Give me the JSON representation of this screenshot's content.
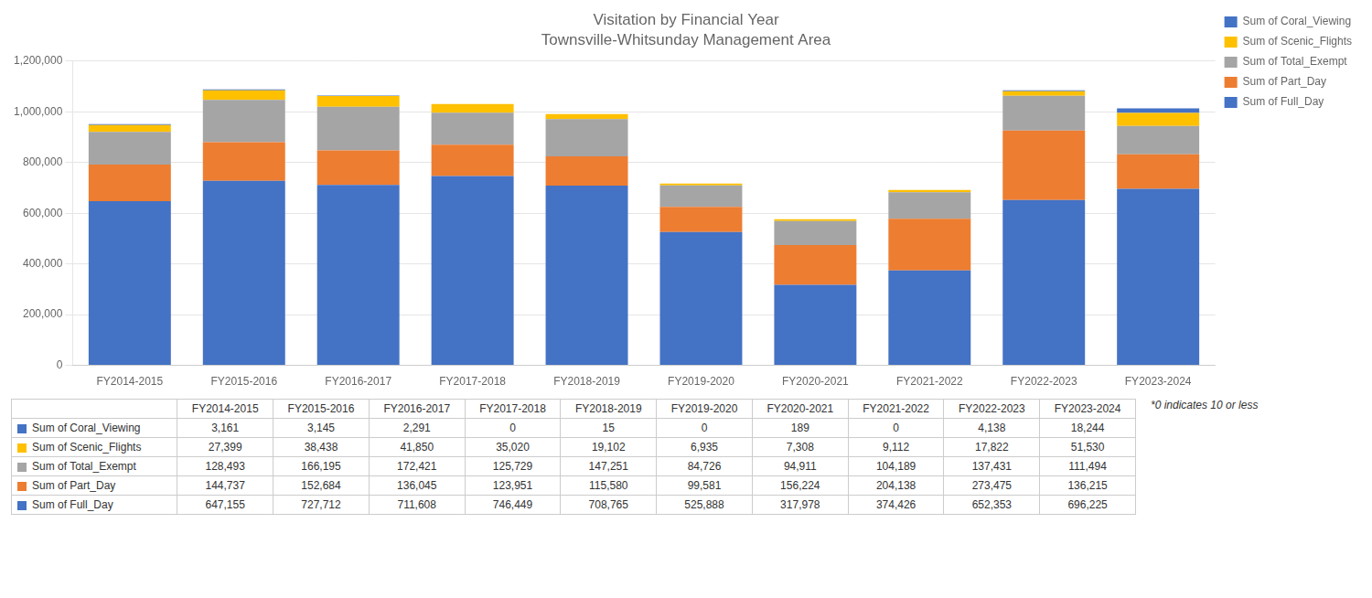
{
  "chart_data": {
    "type": "bar",
    "title": "Visitation by Financial Year",
    "subtitle": "Townsville-Whitsunday Management Area",
    "categories": [
      "FY2014-2015",
      "FY2015-2016",
      "FY2016-2017",
      "FY2017-2018",
      "FY2018-2019",
      "FY2019-2020",
      "FY2020-2021",
      "FY2021-2022",
      "FY2022-2023",
      "FY2023-2024"
    ],
    "series": [
      {
        "name": "Sum of Full_Day",
        "color": "#4472C4",
        "values": [
          647155,
          727712,
          711608,
          746449,
          708765,
          525888,
          317978,
          374426,
          652353,
          696225
        ]
      },
      {
        "name": "Sum of Part_Day",
        "color": "#ED7D31",
        "values": [
          144737,
          152684,
          136045,
          123951,
          115580,
          99581,
          156224,
          204138,
          273475,
          136215
        ]
      },
      {
        "name": "Sum of Total_Exempt",
        "color": "#A5A5A5",
        "values": [
          128493,
          166195,
          172421,
          125729,
          147251,
          84726,
          94911,
          104189,
          137431,
          111494
        ]
      },
      {
        "name": "Sum of Scenic_Flights",
        "color": "#FFC000",
        "values": [
          27399,
          38438,
          41850,
          35020,
          19102,
          6935,
          7308,
          9112,
          17822,
          51530
        ]
      },
      {
        "name": "Sum of Coral_Viewing",
        "color": "#4472C4",
        "values": [
          3161,
          3145,
          2291,
          0,
          15,
          0,
          189,
          0,
          4138,
          18244
        ]
      }
    ],
    "stacked": true,
    "ylim": [
      0,
      1200000
    ],
    "yticks": [
      0,
      {
        "value": 200000,
        "label": "200,000"
      },
      {
        "value": 400000,
        "label": "400,000"
      },
      {
        "value": 600000,
        "label": "600,000"
      },
      {
        "value": 800000,
        "label": "800,000"
      },
      {
        "value": 1000000,
        "label": "1,000,000"
      },
      {
        "value": 1200000,
        "label": "1,200,000"
      }
    ],
    "grid": true,
    "legend": "right",
    "annotation": "*0 indicates 10 or less",
    "table": {
      "rows": [
        {
          "name": "Sum of Coral_Viewing",
          "color": "#4472C4",
          "values": [
            3161,
            3145,
            2291,
            0,
            15,
            0,
            189,
            0,
            4138,
            18244
          ],
          "value_labels": [
            "3,161",
            "3,145",
            "2,291",
            "0",
            "15",
            "0",
            "189",
            "0",
            "4,138",
            "18,244"
          ]
        },
        {
          "name": "Sum of Scenic_Flights",
          "color": "#FFC000",
          "values": [
            27399,
            38438,
            41850,
            35020,
            19102,
            6935,
            7308,
            9112,
            17822,
            51530
          ],
          "value_labels": [
            "27,399",
            "38,438",
            "41,850",
            "35,020",
            "19,102",
            "6,935",
            "7,308",
            "9,112",
            "17,822",
            "51,530"
          ]
        },
        {
          "name": "Sum of Total_Exempt",
          "color": "#A5A5A5",
          "values": [
            128493,
            166195,
            172421,
            125729,
            147251,
            84726,
            94911,
            104189,
            137431,
            111494
          ],
          "value_labels": [
            "128,493",
            "166,195",
            "172,421",
            "125,729",
            "147,251",
            "84,726",
            "94,911",
            "104,189",
            "137,431",
            "111,494"
          ]
        },
        {
          "name": "Sum of Part_Day",
          "color": "#ED7D31",
          "values": [
            144737,
            152684,
            136045,
            123951,
            115580,
            99581,
            156224,
            204138,
            273475,
            136215
          ],
          "value_labels": [
            "144,737",
            "152,684",
            "136,045",
            "123,951",
            "115,580",
            "99,581",
            "156,224",
            "204,138",
            "273,475",
            "136,215"
          ]
        },
        {
          "name": "Sum of Full_Day",
          "color": "#4472C4",
          "values": [
            647155,
            727712,
            711608,
            746449,
            708765,
            525888,
            317978,
            374426,
            652353,
            696225
          ],
          "value_labels": [
            "647,155",
            "727,712",
            "711,608",
            "746,449",
            "708,765",
            "525,888",
            "317,978",
            "374,426",
            "652,353",
            "696,225"
          ]
        }
      ]
    }
  }
}
